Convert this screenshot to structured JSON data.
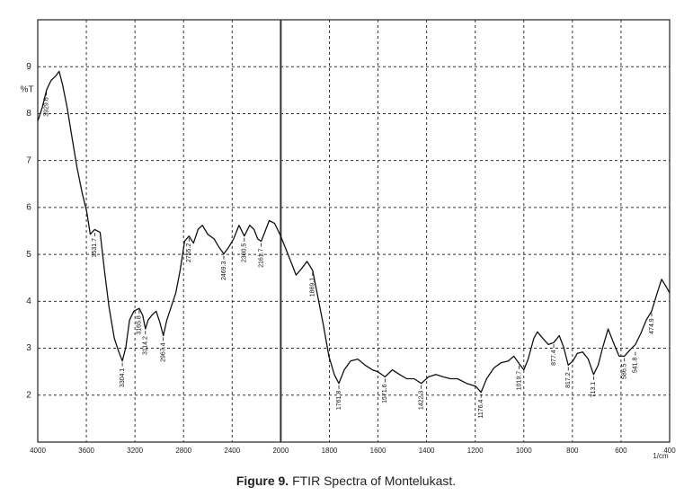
{
  "chart_data": {
    "type": "line",
    "ylabel": "%T",
    "xunit": "1/cm",
    "caption": {
      "label": "Figure 9.",
      "text": "FTIR Spectra of Montelukast."
    },
    "xlim": [
      4000,
      400
    ],
    "ylim": [
      1,
      10
    ],
    "xticks": [
      4000,
      3600,
      3200,
      2800,
      2400,
      2000,
      1800,
      1600,
      1400,
      1200,
      1000,
      800,
      600,
      400
    ],
    "yticks": [
      2,
      3,
      4,
      5,
      6,
      7,
      8,
      9
    ],
    "grid": true,
    "series": [
      {
        "color": "#111111",
        "x": [
          4000,
          3963,
          3927,
          3890,
          3853,
          3824,
          3795,
          3758,
          3722,
          3678,
          3634,
          3597,
          3568,
          3531,
          3487,
          3451,
          3414,
          3370,
          3333,
          3304,
          3275,
          3245,
          3209,
          3165,
          3136,
          3114,
          3092,
          3062,
          3026,
          2996,
          2967,
          2938,
          2901,
          2864,
          2828,
          2791,
          2755,
          2718,
          2681,
          2645,
          2601,
          2549,
          2505,
          2469,
          2432,
          2388,
          2344,
          2300,
          2256,
          2220,
          2190,
          2161,
          2132,
          2095,
          2051,
          2007,
          1981,
          1959,
          1937,
          1914,
          1892,
          1869,
          1847,
          1825,
          1802,
          1780,
          1761,
          1739,
          1713,
          1683,
          1653,
          1623,
          1601,
          1571,
          1541,
          1511,
          1482,
          1452,
          1422,
          1392,
          1362,
          1332,
          1302,
          1273,
          1235,
          1198,
          1176,
          1153,
          1123,
          1094,
          1064,
          1041,
          1019,
          1000,
          982,
          959,
          944,
          922,
          899,
          877,
          854,
          836,
          817,
          798,
          780,
          758,
          735,
          713,
          694,
          675,
          653,
          631,
          608,
          586,
          564,
          541,
          519,
          496,
          474,
          451,
          433,
          414,
          400
        ],
        "values": [
          7.84,
          8.13,
          8.51,
          8.71,
          8.8,
          8.9,
          8.61,
          8.13,
          7.55,
          6.87,
          6.3,
          5.91,
          5.43,
          5.53,
          5.47,
          4.66,
          3.89,
          3.21,
          2.92,
          2.73,
          3.02,
          3.6,
          3.79,
          3.85,
          3.7,
          3.41,
          3.6,
          3.7,
          3.79,
          3.56,
          3.27,
          3.6,
          3.89,
          4.18,
          4.66,
          5.28,
          5.39,
          5.24,
          5.53,
          5.62,
          5.43,
          5.33,
          5.14,
          5.01,
          5.14,
          5.33,
          5.62,
          5.39,
          5.62,
          5.53,
          5.33,
          5.28,
          5.47,
          5.72,
          5.66,
          5.43,
          5.14,
          4.85,
          4.56,
          4.7,
          4.85,
          4.66,
          4.08,
          3.5,
          2.83,
          2.44,
          2.25,
          2.54,
          2.73,
          2.77,
          2.64,
          2.54,
          2.5,
          2.39,
          2.54,
          2.44,
          2.35,
          2.35,
          2.25,
          2.39,
          2.44,
          2.39,
          2.35,
          2.35,
          2.25,
          2.19,
          2.06,
          2.35,
          2.58,
          2.69,
          2.73,
          2.83,
          2.67,
          2.54,
          2.77,
          3.21,
          3.35,
          3.21,
          3.08,
          3.12,
          3.27,
          3.02,
          2.64,
          2.73,
          2.89,
          2.92,
          2.77,
          2.44,
          2.64,
          3.02,
          3.41,
          3.12,
          2.83,
          2.83,
          2.96,
          3.08,
          3.31,
          3.6,
          3.79,
          4.18,
          4.47,
          4.31,
          4.18
        ]
      }
    ],
    "annotations": [
      {
        "text": "3929.6",
        "x": 3929,
        "y": 8.5
      },
      {
        "text": "3531.7",
        "x": 3531,
        "y": 5.5
      },
      {
        "text": "3304.1",
        "x": 3304,
        "y": 2.73
      },
      {
        "text": "3165.8",
        "x": 3165,
        "y": 3.85
      },
      {
        "text": "3114.2",
        "x": 3114,
        "y": 3.41
      },
      {
        "text": "2967.4",
        "x": 2967,
        "y": 3.27
      },
      {
        "text": "2755.2",
        "x": 2755,
        "y": 5.39
      },
      {
        "text": "2469.3",
        "x": 2469,
        "y": 5.01
      },
      {
        "text": "2300.5",
        "x": 2300,
        "y": 5.39
      },
      {
        "text": "2161.7",
        "x": 2161,
        "y": 5.28
      },
      {
        "text": "1869.1",
        "x": 1869,
        "y": 4.66
      },
      {
        "text": "1761.8",
        "x": 1761,
        "y": 2.25
      },
      {
        "text": "1571.6",
        "x": 1571,
        "y": 2.39
      },
      {
        "text": "1422.3",
        "x": 1422,
        "y": 2.25
      },
      {
        "text": "1176.4",
        "x": 1176,
        "y": 2.06
      },
      {
        "text": "1019.7",
        "x": 1019,
        "y": 2.67
      },
      {
        "text": "877.4",
        "x": 877,
        "y": 3.12
      },
      {
        "text": "817.2",
        "x": 817,
        "y": 2.64
      },
      {
        "text": "713.1",
        "x": 713,
        "y": 2.44
      },
      {
        "text": "586.5",
        "x": 586,
        "y": 2.83
      },
      {
        "text": "541.8",
        "x": 541,
        "y": 2.96
      },
      {
        "text": "474.9",
        "x": 474,
        "y": 3.79
      }
    ]
  }
}
